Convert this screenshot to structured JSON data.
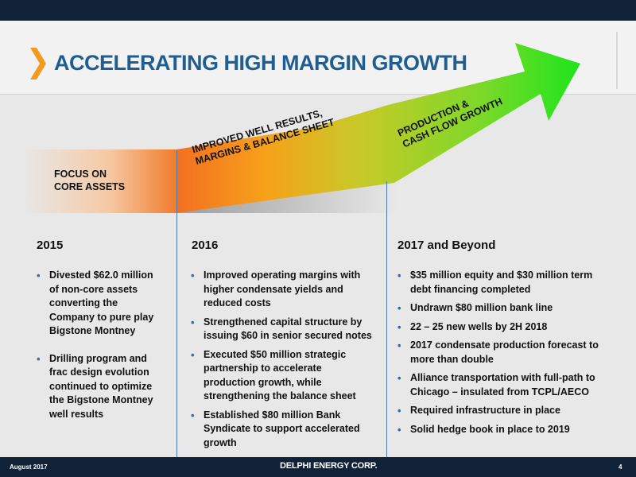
{
  "header": {
    "title": "ACCELERATING HIGH MARGIN GROWTH",
    "chevron_icon": "chevron-right-icon",
    "accent_color": "#f39a1e",
    "title_color": "#1f5e8f"
  },
  "arrow": {
    "phase1": [
      "FOCUS ON",
      "CORE ASSETS"
    ],
    "phase2": [
      "IMPROVED WELL RESULTS,",
      "MARGINS & BALANCE SHEET"
    ],
    "phase3": [
      "PRODUCTION &",
      "CASH FLOW GROWTH"
    ],
    "colors": [
      "#f36f21",
      "#f7a11a",
      "#b5d334",
      "#1ee51c"
    ]
  },
  "columns": [
    {
      "heading": "2015",
      "bullets": [
        "Divested $62.0 million",
        "of non-core assets",
        "converting the",
        "Company to pure play",
        "Bigstone Montney",
        "",
        "Drilling program and",
        "frac design evolution",
        "continued to optimize",
        "the Bigstone Montney",
        "well results"
      ]
    },
    {
      "heading": "2016",
      "bullets": [
        "Improved operating margins with",
        "higher condensate yields and",
        "reduced costs",
        "Strengthened capital structure by",
        "issuing $60 in senior secured notes",
        "Executed $50 million strategic",
        "partnership to accelerate",
        "production growth, while",
        "strengthening the balance sheet",
        "Established $80 million Bank",
        "Syndicate to support accelerated",
        "growth"
      ]
    },
    {
      "heading": "2017 and Beyond",
      "bullets": [
        "$35 million equity and $30 million term",
        "debt financing completed",
        "Undrawn $80 million bank line",
        "22 – 25 new wells by 2H 2018",
        "2017 condensate production forecast to",
        "more than double",
        "Alliance transportation with full-path to",
        "Chicago – insulated from TCPL/AECO",
        "Required infrastructure in place",
        "Solid hedge book in place to 2019"
      ]
    }
  ],
  "footer": {
    "date": "August 2017",
    "company": "DELPHI ENERGY CORP.",
    "page": "4"
  }
}
